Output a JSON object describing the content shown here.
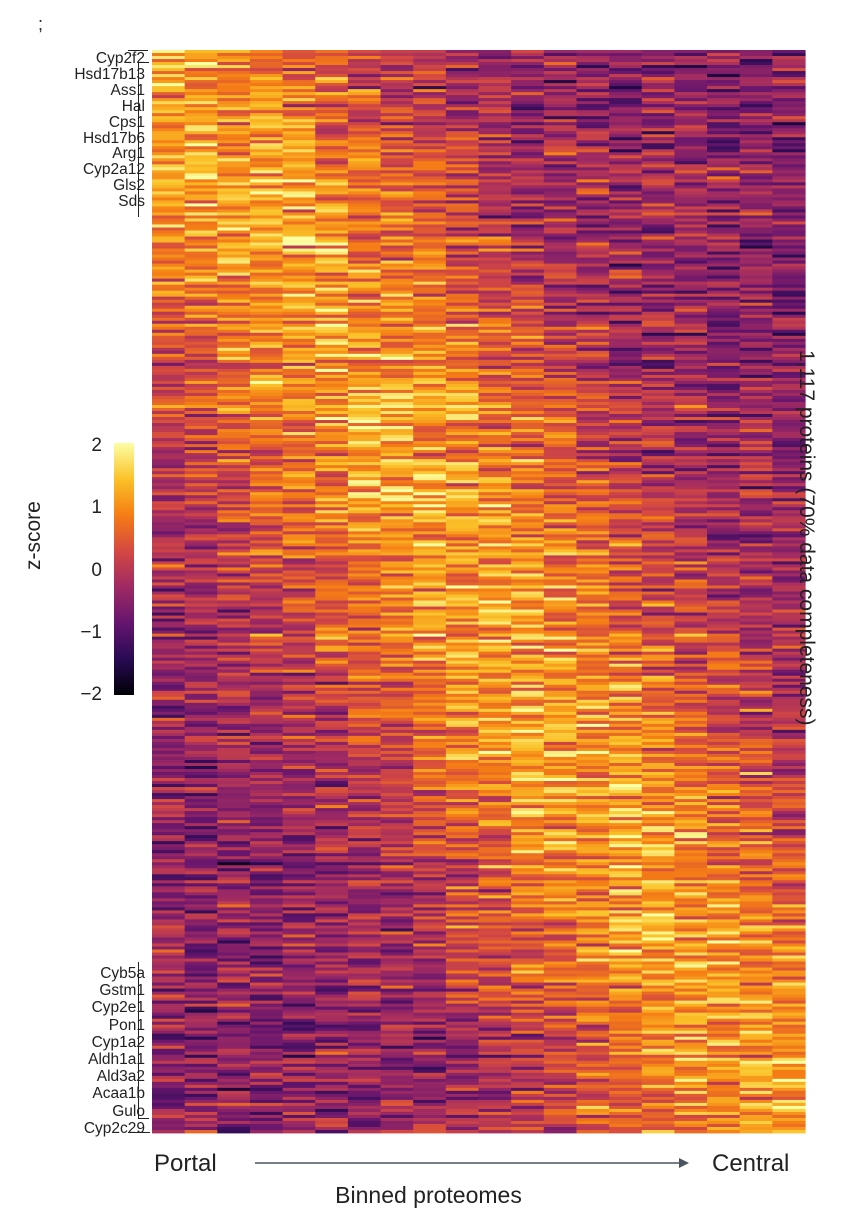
{
  "panel_mark": ";",
  "chart_data": {
    "type": "heatmap",
    "rows": 1117,
    "columns": 20,
    "row_annotation": "1,117 proteins (70% data completeness)",
    "xlabel": "Binned proteomes",
    "x_start_label": "Portal",
    "x_end_label": "Central",
    "colorbar": {
      "label": "z-score",
      "ticks": [
        "2",
        "1",
        "0",
        "−1",
        "−2"
      ],
      "range": [
        -2,
        2
      ],
      "colormap": [
        "#000004",
        "#280b53",
        "#65156e",
        "#9f2a63",
        "#d44842",
        "#f57d15",
        "#fac228",
        "#fcffa4"
      ]
    },
    "top_genes": [
      "Cyp2f2",
      "Hsd17b13",
      "Ass1",
      "Hal",
      "Cps1",
      "Hsd17b6",
      "Arg1",
      "Cyp2a12",
      "Gls2",
      "Sds"
    ],
    "bottom_genes": [
      "Cyb5a",
      "Gstm1",
      "Cyp2e1",
      "Pon1",
      "Cyp1a2",
      "Aldh1a1",
      "Ald3a2",
      "Acaa1b",
      "Gulo",
      "Cyp2c29"
    ],
    "pattern": "rows sorted from portal-high (top) to central-high (bottom)"
  }
}
